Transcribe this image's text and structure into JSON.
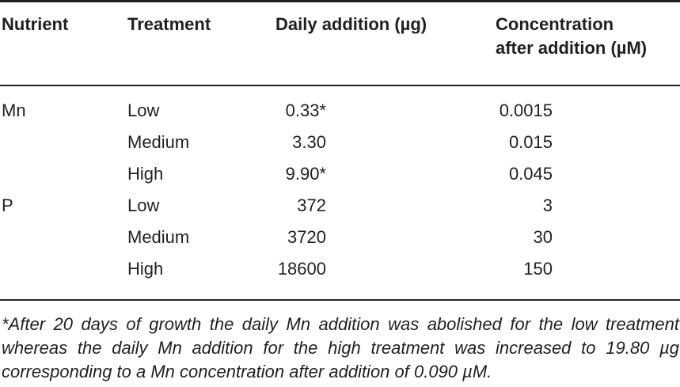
{
  "table": {
    "headers": {
      "nutrient": "Nutrient",
      "treatment": "Treatment",
      "daily_addition": "Daily addition (µg)",
      "concentration_line1": "Concentration",
      "concentration_line2": "after addition (µM)"
    },
    "rows": [
      {
        "nutrient": "Mn",
        "treatment": "Low",
        "daily_addition": "0.33*",
        "concentration": "0.0015"
      },
      {
        "nutrient": "",
        "treatment": "Medium",
        "daily_addition": "3.30",
        "concentration": "0.015"
      },
      {
        "nutrient": "",
        "treatment": "High",
        "daily_addition": "9.90*",
        "concentration": "0.045"
      },
      {
        "nutrient": "P",
        "treatment": "Low",
        "daily_addition": "372",
        "concentration": "3"
      },
      {
        "nutrient": "",
        "treatment": "Medium",
        "daily_addition": "3720",
        "concentration": "30"
      },
      {
        "nutrient": "",
        "treatment": "High",
        "daily_addition": "18600",
        "concentration": "150"
      }
    ],
    "footnote": "*After 20 days of growth the daily Mn addition was abolished for the low treatment whereas the daily Mn addition for the high treatment was increased to 19.80 µg corresponding to a Mn concentration after addition of 0.090 µM."
  }
}
